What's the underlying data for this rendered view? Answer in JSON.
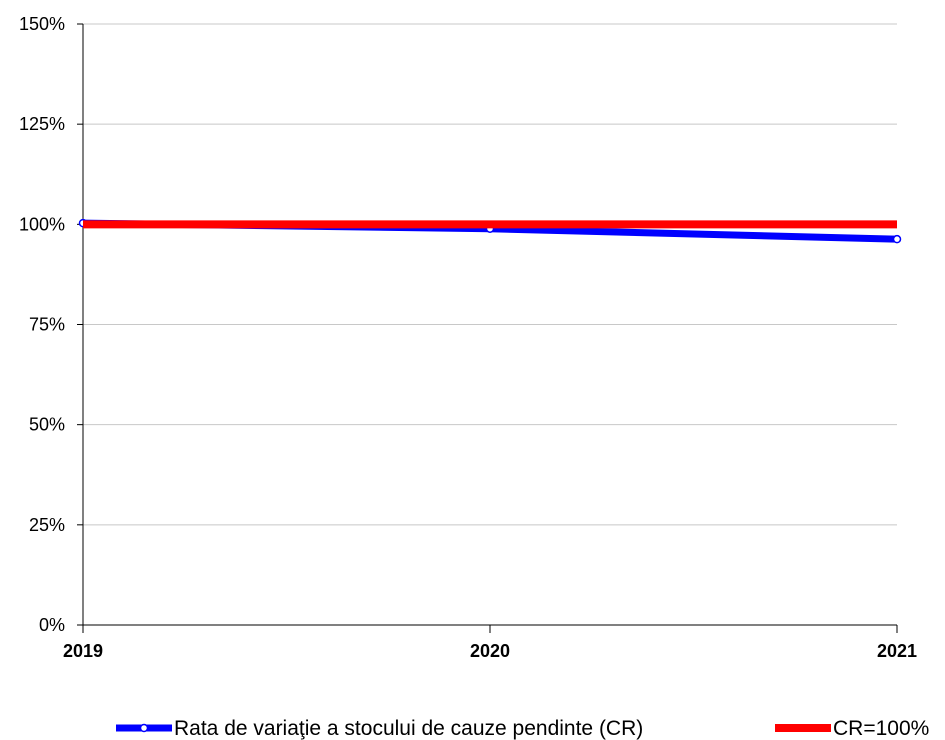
{
  "chart_data": {
    "type": "line",
    "categories": [
      "2019",
      "2020",
      "2021"
    ],
    "ylim": [
      0,
      150
    ],
    "yticks": [
      0,
      25,
      50,
      75,
      100,
      125,
      150
    ],
    "ytick_labels": [
      "0%",
      "25%",
      "50%",
      "75%",
      "100%",
      "125%",
      "150%"
    ],
    "grid": true,
    "legend_position": "bottom",
    "series": [
      {
        "name": "Rata de variaţie a stocului de cauze pendinte (CR)",
        "values": [
          100.3,
          98.9,
          96.3
        ],
        "color": "#0000ff",
        "marker": "circle"
      },
      {
        "name": "CR=100%",
        "values": [
          100,
          100,
          100
        ],
        "color": "#ff0000",
        "marker": "none"
      }
    ]
  }
}
